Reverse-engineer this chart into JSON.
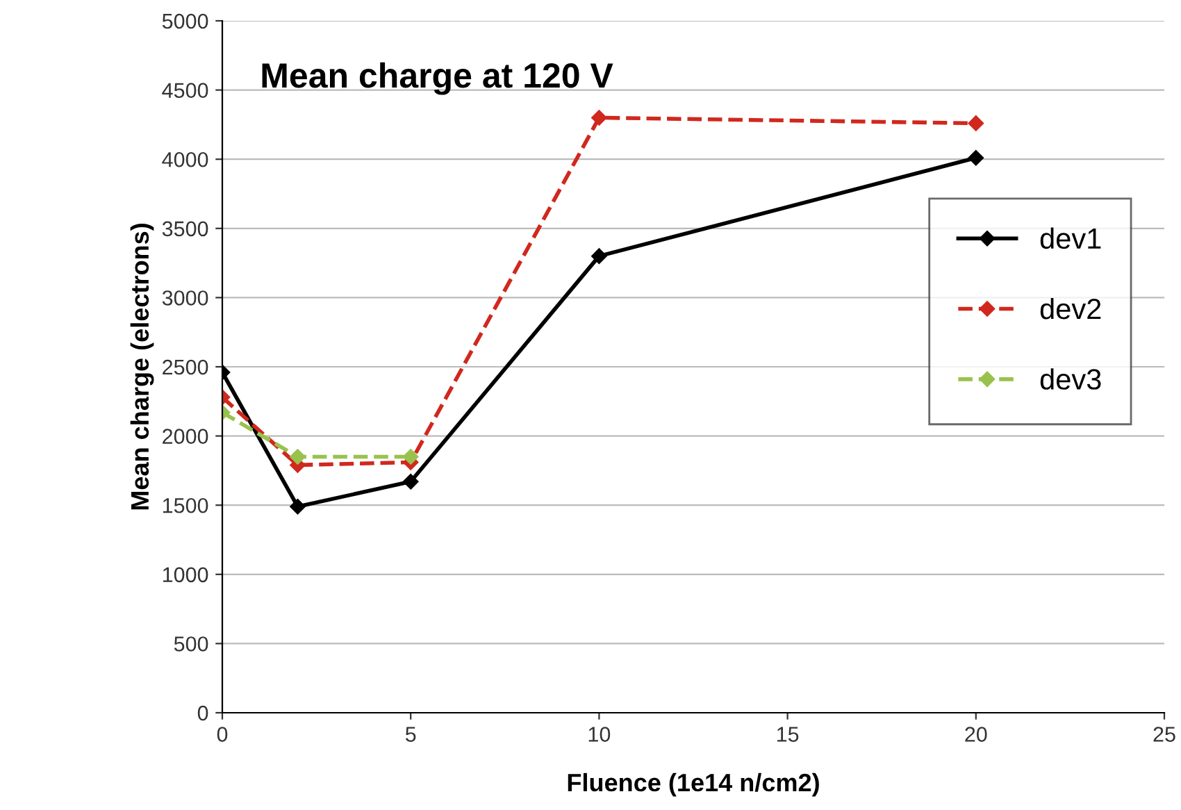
{
  "chart_data": {
    "type": "line",
    "title": "Mean charge at 120 V",
    "xlabel": "Fluence (1e14 n/cm2)",
    "ylabel": "Mean charge (electrons)",
    "x": [
      0,
      2,
      5,
      10,
      20
    ],
    "series": [
      {
        "name": "dev1",
        "color": "#000000",
        "values": [
          2460,
          1490,
          1670,
          3300,
          4010
        ],
        "line_style": "solid"
      },
      {
        "name": "dev2",
        "color": "#d0281e",
        "values": [
          2280,
          1790,
          1810,
          4300,
          4260
        ],
        "line_style": "dashed"
      },
      {
        "name": "dev3",
        "color": "#99c24d",
        "values": [
          2170,
          1850,
          1850,
          null,
          null
        ],
        "line_style": "dashed"
      }
    ],
    "xlim": [
      0,
      25
    ],
    "xticks": [
      0,
      5,
      10,
      15,
      20,
      25
    ],
    "ylim": [
      0,
      5000
    ],
    "yticks": [
      0,
      500,
      1000,
      1500,
      2000,
      2500,
      3000,
      3500,
      4000,
      4500,
      5000
    ],
    "grid": "y",
    "legend": "right",
    "marker": "diamond"
  }
}
